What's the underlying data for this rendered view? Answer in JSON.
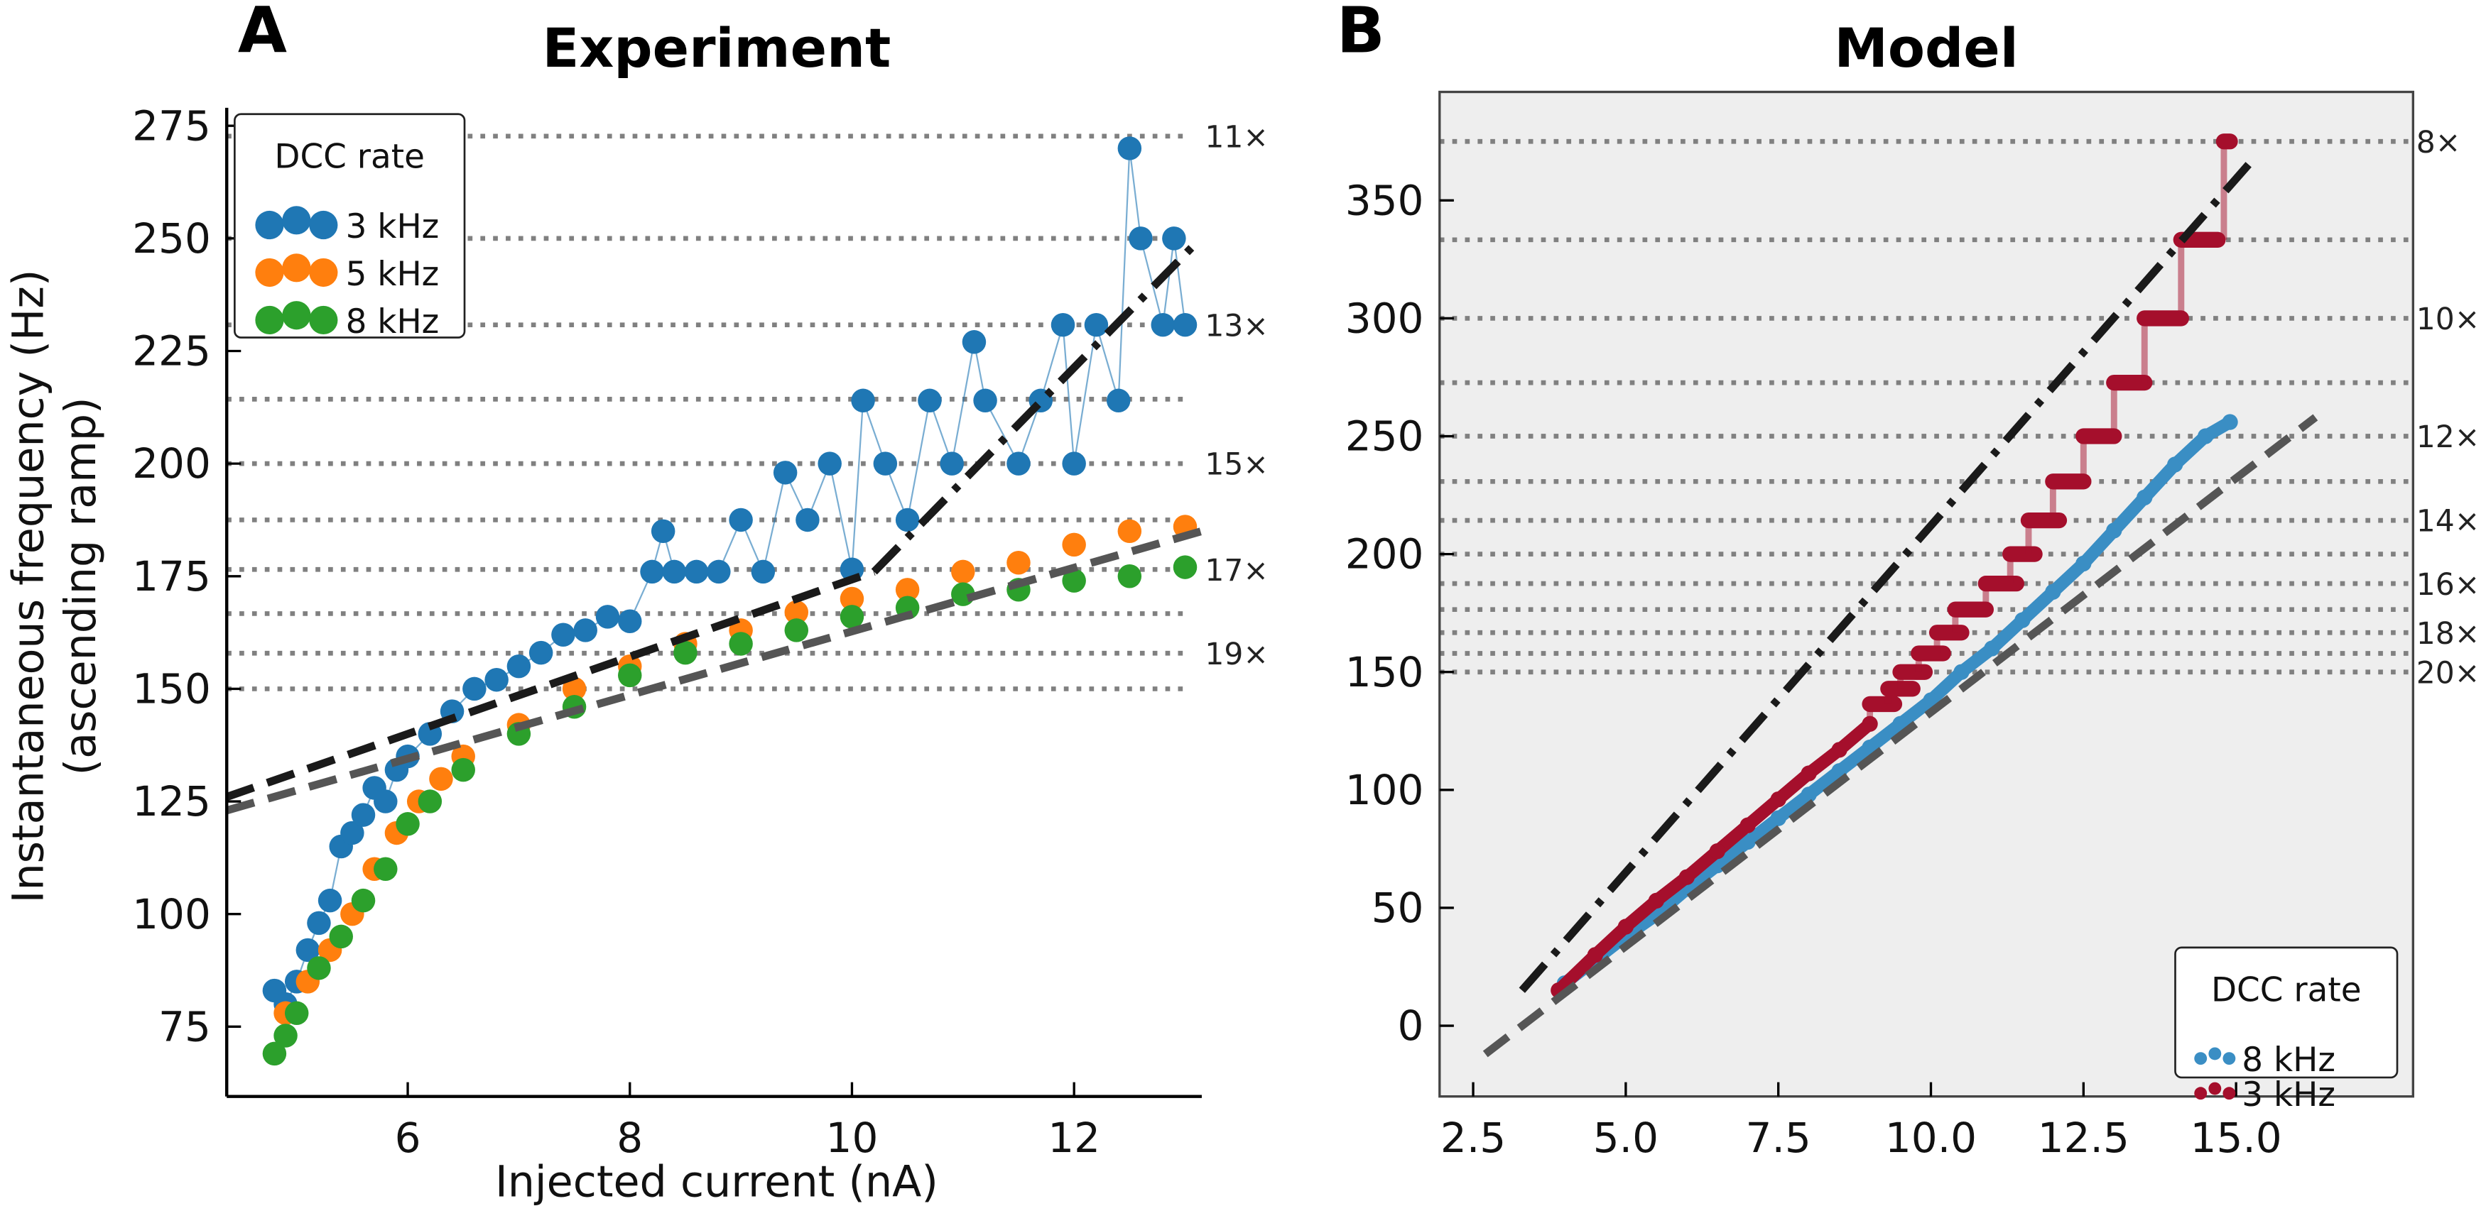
{
  "chart_data": [
    {
      "type": "scatter",
      "panel_label": "A",
      "title": "Experiment",
      "xlabel": "Injected current (nA)",
      "ylabel": "Instantaneous frequency (Hz)",
      "ylabel2": "(ascending ramp)",
      "xlim": [
        4.37,
        13.15
      ],
      "ylim": [
        59.5,
        279
      ],
      "xticks": [
        6,
        8,
        10,
        12
      ],
      "xtick_labels": [
        "6",
        "8",
        "10",
        "12"
      ],
      "yticks": [
        75,
        100,
        125,
        150,
        175,
        200,
        225,
        250,
        275
      ],
      "ytick_labels": [
        "75",
        "100",
        "125",
        "150",
        "175",
        "200",
        "225",
        "250",
        "275"
      ],
      "reference_lines": [
        272.7,
        250,
        230.8,
        214.3,
        200,
        187.5,
        176.5,
        166.7,
        157.9,
        150
      ],
      "reference_labels": [
        {
          "y": 272.7,
          "text": "11×"
        },
        {
          "y": 230.8,
          "text": "13×"
        },
        {
          "y": 200,
          "text": "15×"
        },
        {
          "y": 176.5,
          "text": "17×"
        },
        {
          "y": 157.9,
          "text": "19×"
        }
      ],
      "legend": {
        "title": "DCC rate",
        "placement": "top-left"
      },
      "series": [
        {
          "name": "3 kHz",
          "color": "#1f77b4",
          "connected": true,
          "points": [
            [
              4.8,
              83
            ],
            [
              4.9,
              80
            ],
            [
              5.0,
              85
            ],
            [
              5.1,
              92
            ],
            [
              5.2,
              98
            ],
            [
              5.3,
              103
            ],
            [
              5.4,
              115
            ],
            [
              5.5,
              118
            ],
            [
              5.6,
              122
            ],
            [
              5.7,
              128
            ],
            [
              5.8,
              125
            ],
            [
              5.9,
              132
            ],
            [
              6.0,
              135
            ],
            [
              6.2,
              140
            ],
            [
              6.4,
              145
            ],
            [
              6.6,
              150
            ],
            [
              6.8,
              152
            ],
            [
              7.0,
              155
            ],
            [
              7.2,
              158
            ],
            [
              7.4,
              162
            ],
            [
              7.6,
              163
            ],
            [
              7.8,
              166
            ],
            [
              8.0,
              165
            ],
            [
              8.2,
              176
            ],
            [
              8.3,
              185
            ],
            [
              8.4,
              176
            ],
            [
              8.6,
              176
            ],
            [
              8.8,
              176
            ],
            [
              9.0,
              187.5
            ],
            [
              9.2,
              176
            ],
            [
              9.4,
              198
            ],
            [
              9.6,
              187.5
            ],
            [
              9.8,
              200
            ],
            [
              10.0,
              176.5
            ],
            [
              10.1,
              214
            ],
            [
              10.3,
              200
            ],
            [
              10.5,
              187.5
            ],
            [
              10.7,
              214
            ],
            [
              10.9,
              200
            ],
            [
              11.1,
              227
            ],
            [
              11.2,
              214
            ],
            [
              11.5,
              200
            ],
            [
              11.7,
              214
            ],
            [
              11.9,
              230.8
            ],
            [
              12.0,
              200
            ],
            [
              12.2,
              230.8
            ],
            [
              12.4,
              214
            ],
            [
              12.5,
              270
            ],
            [
              12.6,
              250
            ],
            [
              12.8,
              230.8
            ],
            [
              12.9,
              250
            ],
            [
              13.0,
              230.8
            ]
          ]
        },
        {
          "name": "5 kHz",
          "color": "#ff7f0e",
          "connected": false,
          "points": [
            [
              4.9,
              78
            ],
            [
              5.1,
              85
            ],
            [
              5.3,
              92
            ],
            [
              5.5,
              100
            ],
            [
              5.7,
              110
            ],
            [
              5.9,
              118
            ],
            [
              6.1,
              125
            ],
            [
              6.3,
              130
            ],
            [
              6.5,
              135
            ],
            [
              7.0,
              142
            ],
            [
              7.5,
              150
            ],
            [
              8.0,
              155
            ],
            [
              8.5,
              160
            ],
            [
              9.0,
              163
            ],
            [
              9.5,
              167
            ],
            [
              10.0,
              170
            ],
            [
              10.5,
              172
            ],
            [
              11.0,
              176
            ],
            [
              11.5,
              178
            ],
            [
              12.0,
              182
            ],
            [
              12.5,
              185
            ],
            [
              13.0,
              186
            ]
          ]
        },
        {
          "name": "8 kHz",
          "color": "#2ca02c",
          "connected": false,
          "points": [
            [
              4.8,
              69
            ],
            [
              4.9,
              73
            ],
            [
              5.0,
              78
            ],
            [
              5.2,
              88
            ],
            [
              5.4,
              95
            ],
            [
              5.6,
              103
            ],
            [
              5.8,
              110
            ],
            [
              6.0,
              120
            ],
            [
              6.2,
              125
            ],
            [
              6.5,
              132
            ],
            [
              7.0,
              140
            ],
            [
              7.5,
              146
            ],
            [
              8.0,
              153
            ],
            [
              8.5,
              158
            ],
            [
              9.0,
              160
            ],
            [
              9.5,
              163
            ],
            [
              10.0,
              166
            ],
            [
              10.5,
              168
            ],
            [
              11.0,
              171
            ],
            [
              11.5,
              172
            ],
            [
              12.0,
              174
            ],
            [
              12.5,
              175
            ],
            [
              13.0,
              177
            ]
          ]
        }
      ],
      "fits": [
        {
          "name": "3 kHz fit (low)",
          "color": "#1a1a1a",
          "style": "dashed",
          "points": [
            [
              4.37,
              126
            ],
            [
              10.2,
              176
            ]
          ]
        },
        {
          "name": "3 kHz fit (high)",
          "color": "#1a1a1a",
          "style": "dashdot",
          "points": [
            [
              10.2,
              176
            ],
            [
              13.1,
              249
            ]
          ]
        },
        {
          "name": "8 kHz fit",
          "color": "#555555",
          "style": "dashed",
          "points": [
            [
              4.37,
              123
            ],
            [
              13.15,
              185
            ]
          ]
        }
      ]
    },
    {
      "type": "scatter",
      "panel_label": "B",
      "title": "Model",
      "xlim": [
        1.95,
        17.9
      ],
      "ylim": [
        -30,
        396
      ],
      "xticks": [
        2.5,
        5.0,
        7.5,
        10.0,
        12.5,
        15.0
      ],
      "xtick_labels": [
        "2.5",
        "5.0",
        "7.5",
        "10.0",
        "12.5",
        "15.0"
      ],
      "yticks": [
        0,
        50,
        100,
        150,
        200,
        250,
        300,
        350
      ],
      "ytick_labels": [
        "0",
        "50",
        "100",
        "150",
        "200",
        "250",
        "300",
        "350"
      ],
      "background": "#eeeeee",
      "reference_lines": [
        375,
        333.3,
        300,
        272.7,
        250,
        230.8,
        214.3,
        200,
        187.5,
        176.5,
        166.7,
        157.9,
        150
      ],
      "reference_labels": [
        {
          "y": 375,
          "text": "8×"
        },
        {
          "y": 300,
          "text": "10×"
        },
        {
          "y": 250,
          "text": "12×"
        },
        {
          "y": 214.3,
          "text": "14×"
        },
        {
          "y": 187.5,
          "text": "16×"
        },
        {
          "y": 166.7,
          "text": "18×"
        },
        {
          "y": 150,
          "text": "20×"
        }
      ],
      "legend": {
        "title": "DCC rate",
        "placement": "bottom-right"
      },
      "series": [
        {
          "name": "8 kHz",
          "color": "#3a8ec4",
          "points": [
            [
              4.0,
              18
            ],
            [
              4.5,
              28
            ],
            [
              5,
              38
            ],
            [
              5.5,
              47
            ],
            [
              6,
              58
            ],
            [
              6.5,
              68
            ],
            [
              7,
              78
            ],
            [
              7.5,
              88
            ],
            [
              8,
              98
            ],
            [
              8.5,
              108
            ],
            [
              9,
              118
            ],
            [
              9.5,
              128
            ],
            [
              10,
              138
            ],
            [
              10.5,
              150
            ],
            [
              11,
              160
            ],
            [
              11.5,
              172
            ],
            [
              12,
              184
            ],
            [
              12.5,
              196
            ],
            [
              13,
              210
            ],
            [
              13.5,
              224
            ],
            [
              14,
              238
            ],
            [
              14.5,
              250
            ],
            [
              14.9,
              256
            ]
          ]
        },
        {
          "name": "3 kHz",
          "color": "#a50f2c",
          "points": [
            [
              3.9,
              15
            ],
            [
              4.5,
              30
            ],
            [
              5,
              42
            ],
            [
              5.5,
              53
            ],
            [
              6,
              63
            ],
            [
              6.5,
              74
            ],
            [
              7,
              85
            ],
            [
              7.5,
              96
            ],
            [
              8,
              107
            ],
            [
              8.5,
              117
            ],
            [
              9,
              128
            ]
          ],
          "plateaus": [
            [
              9.0,
              9.4,
              136.4
            ],
            [
              9.3,
              9.7,
              142.9
            ],
            [
              9.5,
              9.9,
              150
            ],
            [
              9.8,
              10.2,
              157.9
            ],
            [
              10.1,
              10.5,
              166.7
            ],
            [
              10.4,
              10.9,
              176.5
            ],
            [
              10.9,
              11.4,
              187.5
            ],
            [
              11.3,
              11.7,
              200
            ],
            [
              11.6,
              12.1,
              214.3
            ],
            [
              12.0,
              12.5,
              230.8
            ],
            [
              12.5,
              13.0,
              250
            ],
            [
              13.0,
              13.5,
              272.7
            ],
            [
              13.5,
              14.1,
              300
            ],
            [
              14.1,
              14.7,
              333.3
            ],
            [
              14.8,
              14.9,
              375
            ]
          ]
        }
      ],
      "fits": [
        {
          "name": "3 kHz fit",
          "color": "#1a1a1a",
          "style": "dashdot",
          "points": [
            [
              3.3,
              15
            ],
            [
              15.3,
              368
            ]
          ]
        },
        {
          "name": "8 kHz fit",
          "color": "#555555",
          "style": "dashed",
          "points": [
            [
              2.7,
              -12
            ],
            [
              16.3,
              258
            ]
          ]
        }
      ]
    }
  ]
}
